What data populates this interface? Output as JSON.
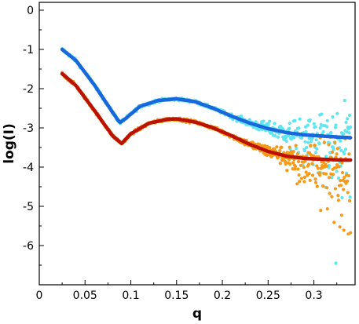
{
  "chart_data": {
    "type": "scatter",
    "title": "",
    "xlabel": "q",
    "ylabel": "log(I)",
    "xlim": [
      0,
      0.345
    ],
    "ylim": [
      -7,
      0.2
    ],
    "xticks": [
      0,
      0.05,
      0.1,
      0.15,
      0.2,
      0.25,
      0.3
    ],
    "xtick_labels": [
      "0",
      "0.05",
      "0.1",
      "0.15",
      "0.2",
      "0.25",
      "0.3"
    ],
    "yticks": [
      0,
      -1,
      -2,
      -3,
      -4,
      -5,
      -6
    ],
    "ytick_labels": [
      "0",
      "-1",
      "-2",
      "-3",
      "-4",
      "-5",
      "-6"
    ],
    "grid": false,
    "legend": "none",
    "series": [
      {
        "kind": "scatter",
        "color": "#60e6f0",
        "role": "data-upper",
        "x": [
          0.025,
          0.04,
          0.06,
          0.08,
          0.088,
          0.095,
          0.11,
          0.13,
          0.15,
          0.17,
          0.19,
          0.21,
          0.23,
          0.25,
          0.27,
          0.29,
          0.31,
          0.33,
          0.34
        ],
        "y": [
          -1.0,
          -1.28,
          -1.9,
          -2.6,
          -2.87,
          -2.75,
          -2.45,
          -2.3,
          -2.26,
          -2.33,
          -2.5,
          -2.7,
          -2.88,
          -3.02,
          -3.12,
          -3.18,
          -3.21,
          -3.24,
          -3.25
        ],
        "scatter_spread_at_high_q": [
          -3.0,
          -5.6
        ],
        "outlier": {
          "x": 0.324,
          "y": -6.45
        }
      },
      {
        "kind": "line",
        "color": "#1a66dd",
        "role": "fit-upper",
        "x": [
          0.025,
          0.04,
          0.06,
          0.08,
          0.088,
          0.095,
          0.11,
          0.13,
          0.15,
          0.17,
          0.19,
          0.21,
          0.23,
          0.25,
          0.27,
          0.29,
          0.31,
          0.33,
          0.34
        ],
        "y": [
          -1.0,
          -1.28,
          -1.9,
          -2.6,
          -2.87,
          -2.75,
          -2.45,
          -2.3,
          -2.26,
          -2.33,
          -2.5,
          -2.7,
          -2.88,
          -3.02,
          -3.12,
          -3.18,
          -3.21,
          -3.24,
          -3.25
        ]
      },
      {
        "kind": "scatter",
        "color": "#f59a1a",
        "role": "data-lower",
        "x": [
          0.025,
          0.04,
          0.06,
          0.08,
          0.09,
          0.1,
          0.12,
          0.14,
          0.15,
          0.17,
          0.19,
          0.21,
          0.23,
          0.25,
          0.27,
          0.29,
          0.31,
          0.33,
          0.34
        ],
        "y": [
          -1.62,
          -1.92,
          -2.55,
          -3.2,
          -3.4,
          -3.15,
          -2.88,
          -2.78,
          -2.77,
          -2.85,
          -3.0,
          -3.2,
          -3.42,
          -3.6,
          -3.72,
          -3.78,
          -3.8,
          -3.82,
          -3.82
        ],
        "scatter_spread_at_high_q": [
          -3.5,
          -5.8
        ]
      },
      {
        "kind": "line",
        "color": "#bb1100",
        "role": "fit-lower",
        "x": [
          0.025,
          0.04,
          0.06,
          0.08,
          0.09,
          0.1,
          0.12,
          0.14,
          0.15,
          0.17,
          0.19,
          0.21,
          0.23,
          0.25,
          0.27,
          0.29,
          0.31,
          0.33,
          0.34
        ],
        "y": [
          -1.62,
          -1.92,
          -2.55,
          -3.2,
          -3.4,
          -3.15,
          -2.88,
          -2.78,
          -2.77,
          -2.85,
          -3.0,
          -3.2,
          -3.42,
          -3.6,
          -3.72,
          -3.78,
          -3.8,
          -3.82,
          -3.82
        ]
      }
    ]
  }
}
